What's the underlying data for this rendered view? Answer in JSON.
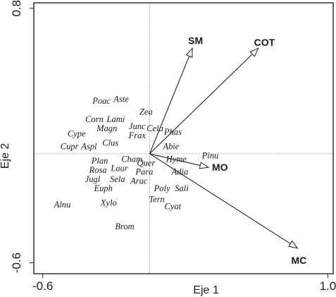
{
  "chart_data": {
    "type": "scatter",
    "title": "",
    "xlabel": "Eje 1",
    "ylabel": "Eje 2",
    "xlim": [
      -0.65,
      1.03
    ],
    "ylim": [
      -0.66,
      0.83
    ],
    "x_ticks": [
      {
        "value": -0.6,
        "label": "-0.6"
      },
      {
        "value": 1.0,
        "label": "1.0"
      }
    ],
    "y_ticks": [
      {
        "value": 0.8,
        "label": "0.8"
      },
      {
        "value": -0.6,
        "label": "-0.6"
      }
    ],
    "grid": false,
    "zero_lines": true,
    "species": [
      {
        "label": "Poac",
        "x": -0.27,
        "y": 0.29
      },
      {
        "label": "Aste",
        "x": -0.16,
        "y": 0.3
      },
      {
        "label": "Corn",
        "x": -0.31,
        "y": 0.19
      },
      {
        "label": "Lami",
        "x": -0.19,
        "y": 0.19
      },
      {
        "label": "Zea",
        "x": -0.02,
        "y": 0.23
      },
      {
        "label": "Magn",
        "x": -0.24,
        "y": 0.14
      },
      {
        "label": "Junc",
        "x": -0.07,
        "y": 0.15
      },
      {
        "label": "Cype",
        "x": -0.41,
        "y": 0.11
      },
      {
        "label": "Frax",
        "x": -0.07,
        "y": 0.1
      },
      {
        "label": "Cela",
        "x": 0.03,
        "y": 0.14
      },
      {
        "label": "Phas",
        "x": 0.13,
        "y": 0.12
      },
      {
        "label": "Cupr",
        "x": -0.45,
        "y": 0.04
      },
      {
        "label": "Aspl",
        "x": -0.34,
        "y": 0.04
      },
      {
        "label": "Clus",
        "x": -0.22,
        "y": 0.06
      },
      {
        "label": "Abie",
        "x": 0.12,
        "y": 0.04
      },
      {
        "label": "Pinu",
        "x": 0.34,
        "y": -0.01
      },
      {
        "label": "Plan",
        "x": -0.28,
        "y": -0.04
      },
      {
        "label": "Cham",
        "x": -0.1,
        "y": -0.03
      },
      {
        "label": "Quer",
        "x": -0.02,
        "y": -0.05
      },
      {
        "label": "Hyme",
        "x": 0.15,
        "y": -0.03
      },
      {
        "label": "Rosa",
        "x": -0.29,
        "y": -0.09
      },
      {
        "label": "Laur",
        "x": -0.17,
        "y": -0.08
      },
      {
        "label": "Para",
        "x": -0.03,
        "y": -0.1
      },
      {
        "label": "Adia",
        "x": 0.17,
        "y": -0.1
      },
      {
        "label": "Jugl",
        "x": -0.32,
        "y": -0.14
      },
      {
        "label": "Sela",
        "x": -0.18,
        "y": -0.14
      },
      {
        "label": "Arac",
        "x": -0.06,
        "y": -0.15
      },
      {
        "label": "Euph",
        "x": -0.26,
        "y": -0.19
      },
      {
        "label": "Poly",
        "x": 0.07,
        "y": -0.19
      },
      {
        "label": "Sali",
        "x": 0.18,
        "y": -0.19
      },
      {
        "label": "Tern",
        "x": 0.04,
        "y": -0.25
      },
      {
        "label": "Xylo",
        "x": -0.23,
        "y": -0.27
      },
      {
        "label": "Alnu",
        "x": -0.49,
        "y": -0.28
      },
      {
        "label": "Cyat",
        "x": 0.13,
        "y": -0.29
      },
      {
        "label": "Brom",
        "x": -0.14,
        "y": -0.4
      }
    ],
    "vectors": [
      {
        "label": "SM",
        "x": 0.24,
        "y": 0.58
      },
      {
        "label": "COT",
        "x": 0.61,
        "y": 0.58
      },
      {
        "label": "MO",
        "x": 0.33,
        "y": -0.075
      },
      {
        "label": "MC",
        "x": 0.83,
        "y": -0.52
      }
    ]
  }
}
